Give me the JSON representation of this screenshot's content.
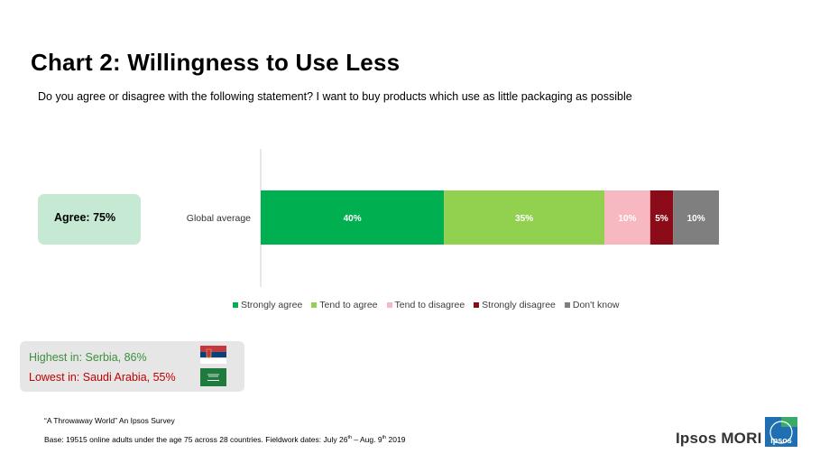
{
  "title": "Chart 2: Willingness to Use Less",
  "question": "Do you agree or disagree with the following statement? I want to buy products which use as little packaging as possible",
  "agree_summary": "Agree: 75%",
  "colors": {
    "strongly_agree": "#00b050",
    "tend_to_agree": "#92d050",
    "tend_to_disagree": "#f8b8c2",
    "strongly_disagree": "#8b0b18",
    "dont_know": "#7f7f7f",
    "agree_box": "#c6e9d3",
    "highlight_box": "#e6e6e6",
    "ipsos_blue": "#1f6fb2",
    "ipsos_green": "#3aaa6a"
  },
  "chart_data": {
    "type": "bar",
    "orientation": "horizontal",
    "stacked": true,
    "categories": [
      "Global average"
    ],
    "series": [
      {
        "name": "Strongly agree",
        "values": [
          40
        ],
        "label": "40%"
      },
      {
        "name": "Tend to agree",
        "values": [
          35
        ],
        "label": "35%"
      },
      {
        "name": "Tend to disagree",
        "values": [
          10
        ],
        "label": "10%"
      },
      {
        "name": "Strongly disagree",
        "values": [
          5
        ],
        "label": "5%"
      },
      {
        "name": "Don't know",
        "values": [
          10
        ],
        "label": "10%"
      }
    ],
    "xlim": [
      0,
      100
    ],
    "legend": "bottom",
    "grid": false
  },
  "highlights": {
    "highest": "Highest in: Serbia, 86%",
    "lowest": "Lowest in: Saudi Arabia, 55%"
  },
  "source": {
    "line1": "“A Throwaway World” An Ipsos Survey",
    "line2_prefix": "Base: 19515 online adults under the age 75 across 28 countries. Fieldwork dates: July 26",
    "sup1": "th",
    "line2_mid": " – Aug. 9",
    "sup2": "th",
    "line2_suffix": " 2019"
  },
  "brand": {
    "name": "Ipsos MORI",
    "logo_text": "Ipsos"
  }
}
